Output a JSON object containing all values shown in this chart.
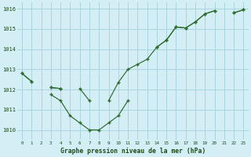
{
  "background_color": "#d4eef5",
  "grid_color": "#a8d5de",
  "line_color": "#2d6a2d",
  "marker_color": "#2d6a2d",
  "xlabel": "Graphe pression niveau de la mer (hPa)",
  "xlabel_color": "#1a4a1a",
  "ylim": [
    1009.5,
    1016.3
  ],
  "xlim": [
    -0.5,
    23.5
  ],
  "yticks": [
    1010,
    1011,
    1012,
    1013,
    1014,
    1015,
    1016
  ],
  "xticks": [
    0,
    1,
    2,
    3,
    4,
    5,
    6,
    7,
    8,
    9,
    10,
    11,
    12,
    13,
    14,
    15,
    16,
    17,
    18,
    19,
    20,
    21,
    22,
    23
  ],
  "series": [
    [
      1012.8,
      1012.4,
      null,
      null,
      null,
      null,
      null,
      null,
      null,
      null,
      null,
      null,
      null,
      null,
      null,
      null,
      null,
      null,
      null,
      null,
      null,
      null,
      1015.8,
      1015.95
    ],
    [
      1012.8,
      1012.4,
      null,
      1012.1,
      1012.05,
      null,
      null,
      null,
      null,
      null,
      null,
      null,
      null,
      null,
      1014.1,
      1014.45,
      1015.1,
      1015.05,
      1015.35,
      1015.75,
      1015.9,
      null,
      1015.8,
      1015.95
    ],
    [
      null,
      null,
      null,
      1012.1,
      1012.05,
      null,
      1012.05,
      1011.45,
      null,
      1011.45,
      1012.35,
      1013.0,
      1013.25,
      1013.5,
      1014.1,
      1014.45,
      1015.1,
      1015.05,
      1015.35,
      1015.75,
      1015.9,
      null,
      null,
      null
    ],
    [
      null,
      null,
      null,
      1011.75,
      1011.45,
      1010.7,
      1010.35,
      1010.0,
      1010.0,
      1010.35,
      1010.7,
      1011.45,
      null,
      null,
      null,
      null,
      null,
      null,
      null,
      null,
      null,
      null,
      null,
      null
    ]
  ]
}
